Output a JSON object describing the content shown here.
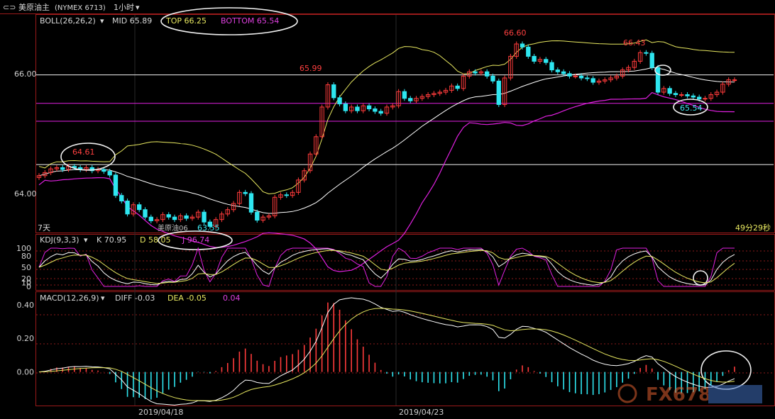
{
  "header": {
    "nav_icon": "back-forward-icon",
    "title": "美原油主",
    "code": "(NYMEX 6713)",
    "period": "1小时",
    "dropdown_icon": "chevron-down-icon"
  },
  "boll": {
    "label": "BOLL(26,26,2)",
    "mid": "MID 65.89",
    "top": "TOP 66.25",
    "bottom": "BOTTOM 65.54"
  },
  "kdj": {
    "label": "KDJ(9,3,3)",
    "k": "K 70.95",
    "d": "D 58.05",
    "j": "J 96.74"
  },
  "macd": {
    "label": "MACD(12,26,9)",
    "diff": "DIFF -0.03",
    "dea": "DEA -0.05",
    "value": "0.04"
  },
  "annotations": {
    "high1": "64.61",
    "high2": "65.99",
    "high3": "66.60",
    "high4": "66.43",
    "low_mark": "65.54",
    "ref_label": "美原油06",
    "ref_value": "63.55",
    "left_note": "7天",
    "countdown": "49分29秒"
  },
  "watermark": "FX678",
  "colors": {
    "up": "#ff3b3b",
    "down": "#2ee6f0",
    "mid": "#ffffff",
    "band": "#e8e860",
    "lower": "#e020e0",
    "bg": "#000000",
    "grid": "#8b1a1a"
  },
  "chart_data": [
    {
      "type": "candlestick",
      "title": "美原油主 (NYMEX 6713) 1小时",
      "xlabel": "",
      "ylabel": "",
      "x_ticks": [
        "2019/04/18",
        "2019/04/23"
      ],
      "y_ticks": [
        64.0,
        66.0
      ],
      "ylim": [
        63.45,
        66.97
      ],
      "horizontal_lines": [
        66.0,
        65.54,
        65.25,
        64.55
      ],
      "series_note": "approximate close path of hourly candles",
      "closes": [
        64.37,
        64.42,
        64.48,
        64.5,
        64.47,
        64.52,
        64.5,
        64.47,
        64.5,
        64.45,
        64.47,
        64.44,
        64.38,
        64.05,
        63.96,
        63.75,
        63.9,
        63.82,
        63.7,
        63.64,
        63.66,
        63.74,
        63.7,
        63.66,
        63.72,
        63.68,
        63.7,
        63.78,
        63.62,
        63.55,
        63.66,
        63.75,
        63.82,
        63.92,
        64.1,
        64.08,
        63.78,
        63.65,
        63.7,
        63.72,
        64.02,
        64.06,
        64.05,
        64.1,
        64.3,
        64.45,
        64.72,
        65.0,
        65.48,
        65.84,
        65.63,
        65.53,
        65.42,
        65.48,
        65.42,
        65.5,
        65.45,
        65.41,
        65.38,
        65.48,
        65.5,
        65.73,
        65.62,
        65.58,
        65.62,
        65.65,
        65.68,
        65.7,
        65.72,
        65.75,
        65.82,
        65.78,
        65.98,
        66.05,
        66.03,
        66.05,
        65.98,
        65.9,
        65.52,
        65.95,
        66.3,
        66.5,
        66.45,
        66.3,
        66.22,
        66.25,
        66.2,
        66.08,
        66.05,
        66.02,
        65.98,
        65.98,
        65.95,
        65.94,
        65.88,
        65.9,
        65.92,
        65.95,
        65.98,
        66.08,
        66.12,
        66.22,
        66.36,
        66.35,
        66.12,
        65.72,
        65.78,
        65.7,
        65.68,
        65.68,
        65.66,
        65.64,
        65.61,
        65.62,
        65.68,
        65.72,
        65.85,
        65.92,
        65.92
      ],
      "boll": {
        "mid": 65.89,
        "top": 66.25,
        "bottom": 65.54
      }
    },
    {
      "type": "line",
      "title": "KDJ(9,3,3)",
      "y_ticks": [
        0,
        10,
        20,
        50,
        80,
        100
      ],
      "ylim": [
        0,
        100
      ],
      "series": [
        {
          "name": "K",
          "last": 70.95
        },
        {
          "name": "D",
          "last": 58.05
        },
        {
          "name": "J",
          "last": 96.74
        }
      ]
    },
    {
      "type": "bar",
      "title": "MACD(12,26,9)",
      "y_ticks": [
        0.0,
        0.2,
        0.4
      ],
      "ylim": [
        -0.2,
        0.45
      ],
      "series": [
        {
          "name": "DIFF",
          "last": -0.03
        },
        {
          "name": "DEA",
          "last": -0.05
        },
        {
          "name": "MACD",
          "last": 0.04
        }
      ]
    }
  ]
}
